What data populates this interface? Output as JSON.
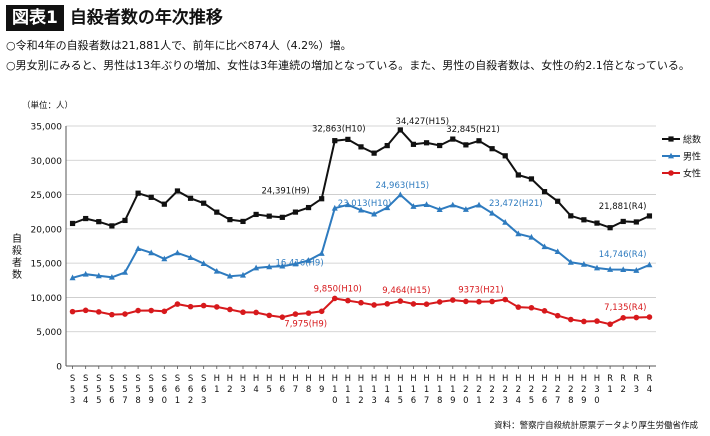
{
  "header": {
    "badge": "図表1",
    "title": "自殺者数の年次推移"
  },
  "notes": [
    "○令和4年の自殺者数は21,881人で、前年に比べ874人（4.2%）増。",
    "○男女別にみると、男性は13年ぶりの増加、女性は3年連続の増加となっている。また、男性の自殺者数は、女性の約2.1倍となっている。"
  ],
  "source": "資料：警察庁自殺統計原票データより厚生労働省作成",
  "chart_data": {
    "type": "line",
    "unit_label": "（単位：人）",
    "ylabel": "自殺者数",
    "ylim": [
      0,
      35000
    ],
    "yticks": [
      0,
      5000,
      10000,
      15000,
      20000,
      25000,
      30000,
      35000
    ],
    "ytick_labels": [
      "0",
      "5,000",
      "10,000",
      "15,000",
      "20,000",
      "25,000",
      "30,000",
      "35,000"
    ],
    "grid": true,
    "legend_position": "right",
    "categories": [
      "S53",
      "S54",
      "S55",
      "S56",
      "S57",
      "S58",
      "S59",
      "S60",
      "S61",
      "S62",
      "S63",
      "H1",
      "H2",
      "H3",
      "H4",
      "H5",
      "H6",
      "H7",
      "H8",
      "H9",
      "H10",
      "H11",
      "H12",
      "H13",
      "H14",
      "H15",
      "H16",
      "H17",
      "H18",
      "H19",
      "H20",
      "H21",
      "H22",
      "H23",
      "H24",
      "H25",
      "H26",
      "H27",
      "H28",
      "H29",
      "H30",
      "R1",
      "R2",
      "R3",
      "R4"
    ],
    "series": [
      {
        "name": "総数",
        "color": "#111111",
        "marker": "square",
        "values": [
          20788,
          21503,
          21048,
          20434,
          21228,
          25202,
          24596,
          23599,
          25524,
          24460,
          23742,
          22436,
          21346,
          21084,
          22104,
          21851,
          21679,
          22445,
          23104,
          24391,
          32863,
          33048,
          31957,
          31042,
          32143,
          34427,
          32325,
          32552,
          32155,
          33093,
          32249,
          32845,
          31690,
          30651,
          27858,
          27283,
          25427,
          24025,
          21897,
          21321,
          20840,
          20169,
          21081,
          21007,
          21881
        ]
      },
      {
        "name": "男性",
        "color": "#2e7bbf",
        "marker": "triangle",
        "values": [
          12859,
          13386,
          13155,
          12942,
          13654,
          17116,
          16508,
          15624,
          16497,
          15802,
          14934,
          13818,
          13102,
          13242,
          14296,
          14468,
          14560,
          14874,
          15393,
          16416,
          23013,
          23512,
          22727,
          22144,
          23080,
          24963,
          23272,
          23540,
          22813,
          23478,
          22831,
          23472,
          22283,
          20955,
          19273,
          18787,
          17386,
          16681,
          15121,
          14826,
          14290,
          14078,
          14055,
          13939,
          14746
        ]
      },
      {
        "name": "女性",
        "color": "#d7191c",
        "marker": "circle",
        "values": [
          7929,
          8117,
          7893,
          7492,
          7574,
          8086,
          8088,
          7975,
          9027,
          8658,
          8808,
          8618,
          8244,
          7842,
          7808,
          7383,
          7119,
          7571,
          7711,
          7975,
          9850,
          9536,
          9230,
          8898,
          9063,
          9464,
          9053,
          9012,
          9342,
          9615,
          9418,
          9373,
          9407,
          9696,
          8585,
          8496,
          8041,
          7344,
          6776,
          6495,
          6550,
          6091,
          7026,
          7068,
          7135
        ]
      }
    ],
    "annotations": [
      {
        "series": 0,
        "x": "H9",
        "text": "24,391(H9)"
      },
      {
        "series": 0,
        "x": "H10",
        "text": "32,863(H10)"
      },
      {
        "series": 0,
        "x": "H15",
        "text": "34,427(H15)"
      },
      {
        "series": 0,
        "x": "H21",
        "text": "32,845(H21)"
      },
      {
        "series": 0,
        "x": "R4",
        "text": "21,881(R4)"
      },
      {
        "series": 1,
        "x": "H9",
        "text": "16,416(H9)"
      },
      {
        "series": 1,
        "x": "H10",
        "text": "23,013(H10)"
      },
      {
        "series": 1,
        "x": "H15",
        "text": "24,963(H15)"
      },
      {
        "series": 1,
        "x": "H21",
        "text": "23,472(H21)"
      },
      {
        "series": 1,
        "x": "R4",
        "text": "14,746(R4)"
      },
      {
        "series": 2,
        "x": "H9",
        "text": "7,975(H9)"
      },
      {
        "series": 2,
        "x": "H10",
        "text": "9,850(H10)"
      },
      {
        "series": 2,
        "x": "H15",
        "text": "9,464(H15)"
      },
      {
        "series": 2,
        "x": "H21",
        "text": "9373(H21)"
      },
      {
        "series": 2,
        "x": "R4",
        "text": "7,135(R4)"
      }
    ]
  }
}
